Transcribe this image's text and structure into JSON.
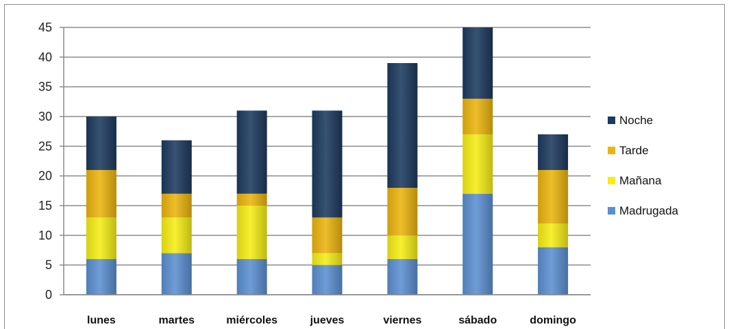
{
  "chart_data": {
    "type": "bar",
    "stacked": true,
    "title": "",
    "xlabel": "",
    "ylabel": "",
    "categories": [
      "lunes",
      "martes",
      "miércoles",
      "jueves",
      "viernes",
      "sábado",
      "domingo"
    ],
    "ylim": [
      0,
      45
    ],
    "yticks": [
      0,
      5,
      10,
      15,
      20,
      25,
      30,
      35,
      40,
      45
    ],
    "grid": true,
    "legend_position": "right",
    "series": [
      {
        "name": "Madrugada",
        "color": "#5b8fd0",
        "values": [
          6,
          7,
          6,
          5,
          6,
          17,
          8
        ]
      },
      {
        "name": "Mañana",
        "color": "#f5ed16",
        "values": [
          7,
          6,
          9,
          2,
          4,
          10,
          4
        ]
      },
      {
        "name": "Tarde",
        "color": "#ebb40e",
        "values": [
          8,
          4,
          2,
          6,
          8,
          6,
          9
        ]
      },
      {
        "name": "Noche",
        "color": "#1d3a5f",
        "values": [
          9,
          9,
          14,
          18,
          21,
          12,
          6
        ]
      }
    ],
    "legend_order": [
      "Noche",
      "Tarde",
      "Mañana",
      "Madrugada"
    ],
    "gridline_color": "#8a8a8a"
  }
}
